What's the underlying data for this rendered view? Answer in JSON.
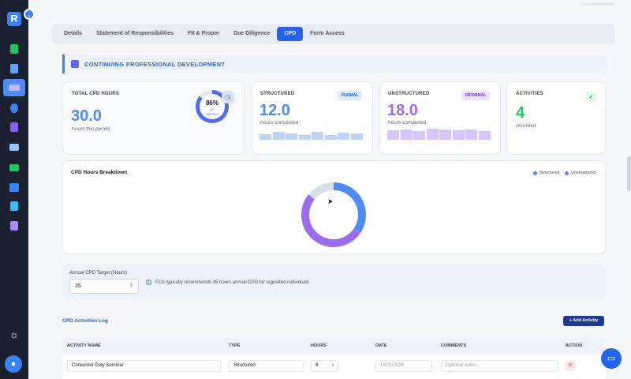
{
  "app": {
    "logo_letter": "R",
    "colors": {
      "sidebar": "#1b2130",
      "accent": "#2563eb",
      "structured": "#4f8cf7",
      "unstructured": "#9b6cf0"
    }
  },
  "tabs": [
    "Details",
    "Statement of Responsibilities",
    "Fit & Proper",
    "Due Diligence",
    "CPD",
    "Form Access"
  ],
  "active_tab": "CPD",
  "section": {
    "title": "CONTINUING PROFESSIONAL DEVELOPMENT"
  },
  "stats": {
    "total": {
      "label": "TOTAL CPD HOURS",
      "value": "30.0",
      "sub": "hours this period",
      "pct": "86%",
      "of": "OF",
      "target": "TARGET",
      "progress": 0.86
    },
    "structured": {
      "label": "STRUCTURED",
      "badge": "FORMAL",
      "value": "12.0",
      "sub": "hours completed",
      "bars": [
        0.5,
        0.7,
        0.6,
        0.45,
        0.7,
        0.4,
        0.65,
        0.55
      ]
    },
    "unstructured": {
      "label": "UNSTRUCTURED",
      "badge": "INFORMAL",
      "value": "18.0",
      "sub": "hours completed",
      "bars": [
        0.85,
        0.9,
        0.8,
        1.0,
        0.95,
        0.85,
        0.9,
        0.8
      ]
    },
    "activities": {
      "label": "ACTIVITIES",
      "value": "4",
      "sub": "recorded"
    }
  },
  "chart_data": {
    "type": "pie",
    "title": "CPD Hours Breakdown",
    "legend": [
      "Structured",
      "Unstructured"
    ],
    "legend_position": "top-right",
    "series": [
      {
        "name": "Structured",
        "value": 12
      },
      {
        "name": "Unstructured",
        "value": 18
      }
    ],
    "remaining_to_target": 5,
    "colors": [
      "#4f8cf7",
      "#9b6cf0",
      "#d9dde6"
    ]
  },
  "target": {
    "label": "Annual CPD Target (Hours)",
    "value": "35",
    "hint": "FCA typically recommends 35 hours annual CPD for regulated individuals"
  },
  "log": {
    "title": "CPD Activities Log",
    "add_label": "Add Activity",
    "columns": [
      "ACTIVITY NAME",
      "TYPE",
      "HOURS",
      "DATE",
      "COMMENTS",
      "ACTION"
    ],
    "rows": [
      {
        "name": "Consumer Duty Seminar",
        "type": "Structured",
        "hours": "8",
        "date": "18/01/2026",
        "comments_placeholder": "Optional notes..."
      }
    ]
  }
}
